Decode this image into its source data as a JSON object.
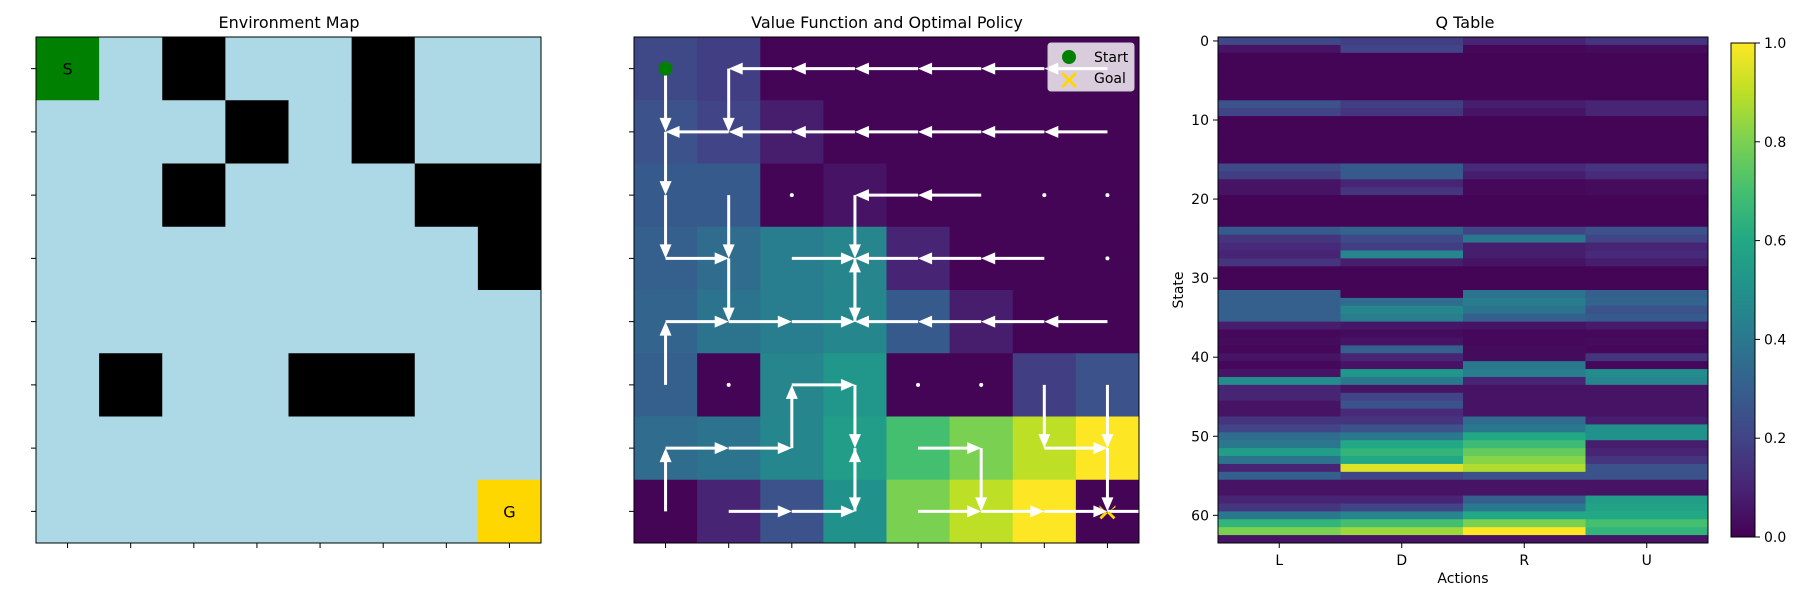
{
  "chart_data": [
    {
      "type": "heatmap",
      "title": "Environment Map",
      "grid_size": 8,
      "start_label": "S",
      "hole_label": "H",
      "goal_label": "G",
      "colors": {
        "frozen": "#add8e6",
        "hole": "#000000",
        "start": "#008000",
        "goal": "#ffd700",
        "hole_text": "#ffffff",
        "cell_text": "#000000"
      },
      "map": [
        "SFHFFHFF",
        "FFFHFHFF",
        "FFHFFFHH",
        "FFFFFFFH",
        "FFFFFFFF",
        "FHFFHHFF",
        "FFFFFFFF",
        "FFFFFFFG"
      ]
    },
    {
      "type": "heatmap",
      "title": "Value Function and Optimal Policy",
      "legend": {
        "start": "Start",
        "goal": "Goal",
        "placement": "upper-right"
      },
      "start_cell": [
        0,
        0
      ],
      "goal_cell": [
        7,
        7
      ],
      "colors": {
        "arrow": "#ffffff",
        "start_marker": "#008000",
        "goal_marker": "#ffd700"
      },
      "values": [
        [
          0.22,
          0.18,
          0.01,
          0.01,
          0.01,
          0.01,
          0.01,
          0.01
        ],
        [
          0.25,
          0.2,
          0.08,
          0.01,
          0.01,
          0.01,
          0.01,
          0.01
        ],
        [
          0.28,
          0.28,
          0.01,
          0.05,
          0.01,
          0.01,
          0.01,
          0.01
        ],
        [
          0.3,
          0.35,
          0.42,
          0.45,
          0.1,
          0.01,
          0.01,
          0.01
        ],
        [
          0.32,
          0.38,
          0.42,
          0.46,
          0.28,
          0.08,
          0.01,
          0.01
        ],
        [
          0.3,
          0.01,
          0.45,
          0.52,
          0.01,
          0.01,
          0.18,
          0.25
        ],
        [
          0.35,
          0.38,
          0.46,
          0.55,
          0.7,
          0.8,
          0.9,
          1.0
        ],
        [
          0.01,
          0.1,
          0.25,
          0.5,
          0.8,
          0.9,
          1.0,
          0.01
        ]
      ],
      "policy": [
        [
          "D",
          "D",
          "L",
          "L",
          "L",
          "L",
          "L",
          "L"
        ],
        [
          "D",
          "L",
          "L",
          "L",
          "L",
          "L",
          "L",
          "L"
        ],
        [
          "D",
          "D",
          "-",
          "D",
          "L",
          "L",
          "-",
          "-"
        ],
        [
          "R",
          "D",
          "R",
          "D",
          "L",
          "L",
          "L",
          "-"
        ],
        [
          "R",
          "R",
          "R",
          "U",
          "L",
          "L",
          "L",
          "L"
        ],
        [
          "U",
          "-",
          "R",
          "D",
          "-",
          "-",
          "D",
          "D"
        ],
        [
          "R",
          "R",
          "U",
          "D",
          "R",
          "D",
          "R",
          "D"
        ],
        [
          "U",
          "R",
          "R",
          "U",
          "R",
          "R",
          "R",
          "R"
        ]
      ]
    },
    {
      "type": "heatmap",
      "title": "Q Table",
      "xlabel": "Actions",
      "ylabel": "State",
      "categories": [
        "L",
        "D",
        "R",
        "U"
      ],
      "yticks": [
        0,
        10,
        20,
        30,
        40,
        50,
        60
      ],
      "colorbar_ticks": [
        "0.0",
        "0.2",
        "0.4",
        "0.6",
        "0.8",
        "1.0"
      ],
      "colorbar_range": [
        0,
        1
      ],
      "colormap": "viridis",
      "values": [
        [
          0.22,
          0.18,
          0.1,
          0.15
        ],
        [
          0.05,
          0.2,
          0.02,
          0.03
        ],
        [
          0.01,
          0.01,
          0.01,
          0.01
        ],
        [
          0.01,
          0.01,
          0.01,
          0.01
        ],
        [
          0.01,
          0.01,
          0.01,
          0.01
        ],
        [
          0.01,
          0.01,
          0.01,
          0.01
        ],
        [
          0.01,
          0.01,
          0.01,
          0.01
        ],
        [
          0.01,
          0.01,
          0.01,
          0.01
        ],
        [
          0.25,
          0.18,
          0.08,
          0.1
        ],
        [
          0.2,
          0.15,
          0.05,
          0.1
        ],
        [
          0.01,
          0.01,
          0.01,
          0.01
        ],
        [
          0.01,
          0.01,
          0.01,
          0.01
        ],
        [
          0.01,
          0.01,
          0.01,
          0.01
        ],
        [
          0.01,
          0.01,
          0.01,
          0.01
        ],
        [
          0.01,
          0.01,
          0.01,
          0.01
        ],
        [
          0.01,
          0.01,
          0.01,
          0.01
        ],
        [
          0.22,
          0.28,
          0.12,
          0.15
        ],
        [
          0.18,
          0.28,
          0.08,
          0.12
        ],
        [
          0.05,
          0.1,
          0.02,
          0.03
        ],
        [
          0.05,
          0.15,
          0.02,
          0.03
        ],
        [
          0.01,
          0.01,
          0.01,
          0.01
        ],
        [
          0.01,
          0.01,
          0.01,
          0.01
        ],
        [
          0.01,
          0.01,
          0.01,
          0.01
        ],
        [
          0.01,
          0.01,
          0.01,
          0.01
        ],
        [
          0.28,
          0.32,
          0.2,
          0.25
        ],
        [
          0.15,
          0.22,
          0.4,
          0.2
        ],
        [
          0.12,
          0.18,
          0.08,
          0.1
        ],
        [
          0.1,
          0.45,
          0.08,
          0.12
        ],
        [
          0.15,
          0.08,
          0.05,
          0.08
        ],
        [
          0.01,
          0.01,
          0.01,
          0.01
        ],
        [
          0.01,
          0.01,
          0.01,
          0.01
        ],
        [
          0.01,
          0.01,
          0.01,
          0.01
        ],
        [
          0.3,
          0.01,
          0.38,
          0.3
        ],
        [
          0.3,
          0.35,
          0.42,
          0.32
        ],
        [
          0.3,
          0.46,
          0.38,
          0.25
        ],
        [
          0.3,
          0.42,
          0.3,
          0.28
        ],
        [
          0.08,
          0.06,
          0.05,
          0.07
        ],
        [
          0.02,
          0.03,
          0.02,
          0.02
        ],
        [
          0.03,
          0.05,
          0.02,
          0.03
        ],
        [
          0.02,
          0.3,
          0.03,
          0.02
        ],
        [
          0.05,
          0.1,
          0.03,
          0.15
        ],
        [
          0.02,
          0.05,
          0.4,
          0.02
        ],
        [
          0.05,
          0.52,
          0.42,
          0.48
        ],
        [
          0.48,
          0.4,
          0.1,
          0.45
        ],
        [
          0.1,
          0.05,
          0.05,
          0.05
        ],
        [
          0.1,
          0.2,
          0.05,
          0.05
        ],
        [
          0.05,
          0.25,
          0.05,
          0.05
        ],
        [
          0.05,
          0.12,
          0.05,
          0.05
        ],
        [
          0.15,
          0.15,
          0.35,
          0.08
        ],
        [
          0.2,
          0.25,
          0.4,
          0.5
        ],
        [
          0.35,
          0.4,
          0.6,
          0.5
        ],
        [
          0.4,
          0.6,
          0.68,
          0.08
        ],
        [
          0.55,
          0.65,
          0.76,
          0.1
        ],
        [
          0.38,
          0.6,
          0.82,
          0.15
        ],
        [
          0.1,
          0.95,
          0.88,
          0.25
        ],
        [
          0.3,
          0.2,
          0.25,
          0.25
        ],
        [
          0.05,
          0.05,
          0.05,
          0.05
        ],
        [
          0.05,
          0.05,
          0.05,
          0.05
        ],
        [
          0.1,
          0.1,
          0.3,
          0.55
        ],
        [
          0.15,
          0.2,
          0.4,
          0.58
        ],
        [
          0.4,
          0.45,
          0.6,
          0.6
        ],
        [
          0.65,
          0.7,
          0.8,
          0.7
        ],
        [
          0.8,
          0.85,
          1.0,
          0.65
        ],
        [
          0.05,
          0.05,
          0.05,
          0.05
        ]
      ]
    }
  ]
}
